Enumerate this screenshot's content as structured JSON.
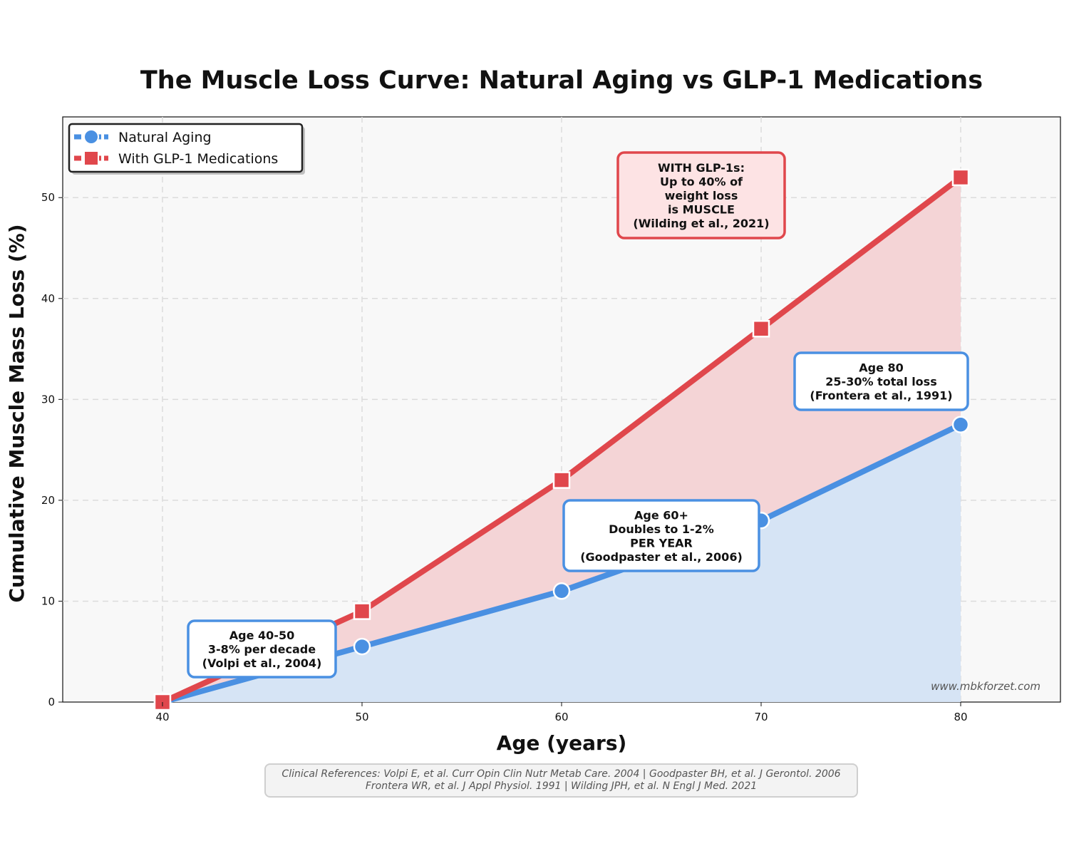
{
  "chart_data": {
    "type": "line",
    "title": "The Muscle Loss Curve: Natural Aging vs GLP-1 Medications",
    "xlabel": "Age (years)",
    "ylabel": "Cumulative Muscle Mass Loss (%)",
    "x": [
      40,
      50,
      60,
      70,
      80
    ],
    "xlim": [
      35,
      85
    ],
    "ylim": [
      0,
      58
    ],
    "xticks": [
      "40",
      "50",
      "60",
      "70",
      "80"
    ],
    "yticks": [
      "0",
      "10",
      "20",
      "30",
      "40",
      "50"
    ],
    "grid": true,
    "legend_position": "top-left",
    "series": [
      {
        "name": "Natural Aging",
        "values": [
          0,
          5.5,
          11,
          18,
          27.5
        ],
        "color": "#4a90e2",
        "fill": "#d6e4f5",
        "marker": "circle"
      },
      {
        "name": "With GLP-1 Medications",
        "values": [
          0,
          9,
          22,
          37,
          52
        ],
        "color": "#e0474c",
        "fill": "#f4d4d6",
        "marker": "square"
      }
    ],
    "annotations": [
      {
        "lines": [
          "WITH GLP-1s:",
          "Up to 40% of",
          "weight loss",
          "is MUSCLE",
          "(Wilding et al., 2021)"
        ],
        "border": "#e0474c",
        "background": "#fde3e4"
      },
      {
        "lines": [
          "Age 80",
          "25-30% total loss",
          "(Frontera et al., 1991)"
        ],
        "border": "#4a90e2",
        "background": "#ffffff"
      },
      {
        "lines": [
          "Age 60+",
          "Doubles to 1-2%",
          "PER YEAR",
          "(Goodpaster et al., 2006)"
        ],
        "border": "#4a90e2",
        "background": "#ffffff"
      },
      {
        "lines": [
          "Age 40-50",
          "3-8% per decade",
          "(Volpi et al., 2004)"
        ],
        "border": "#4a90e2",
        "background": "#ffffff"
      }
    ],
    "watermark": "www.mbkforzet.com"
  },
  "references": [
    "Clinical References: Volpi E, et al. Curr Opin Clin Nutr Metab Care. 2004 | Goodpaster BH, et al. J Gerontol. 2006",
    "Frontera WR, et al. J Appl Physiol. 1991 | Wilding JPH, et al. N Engl J Med. 2021"
  ]
}
